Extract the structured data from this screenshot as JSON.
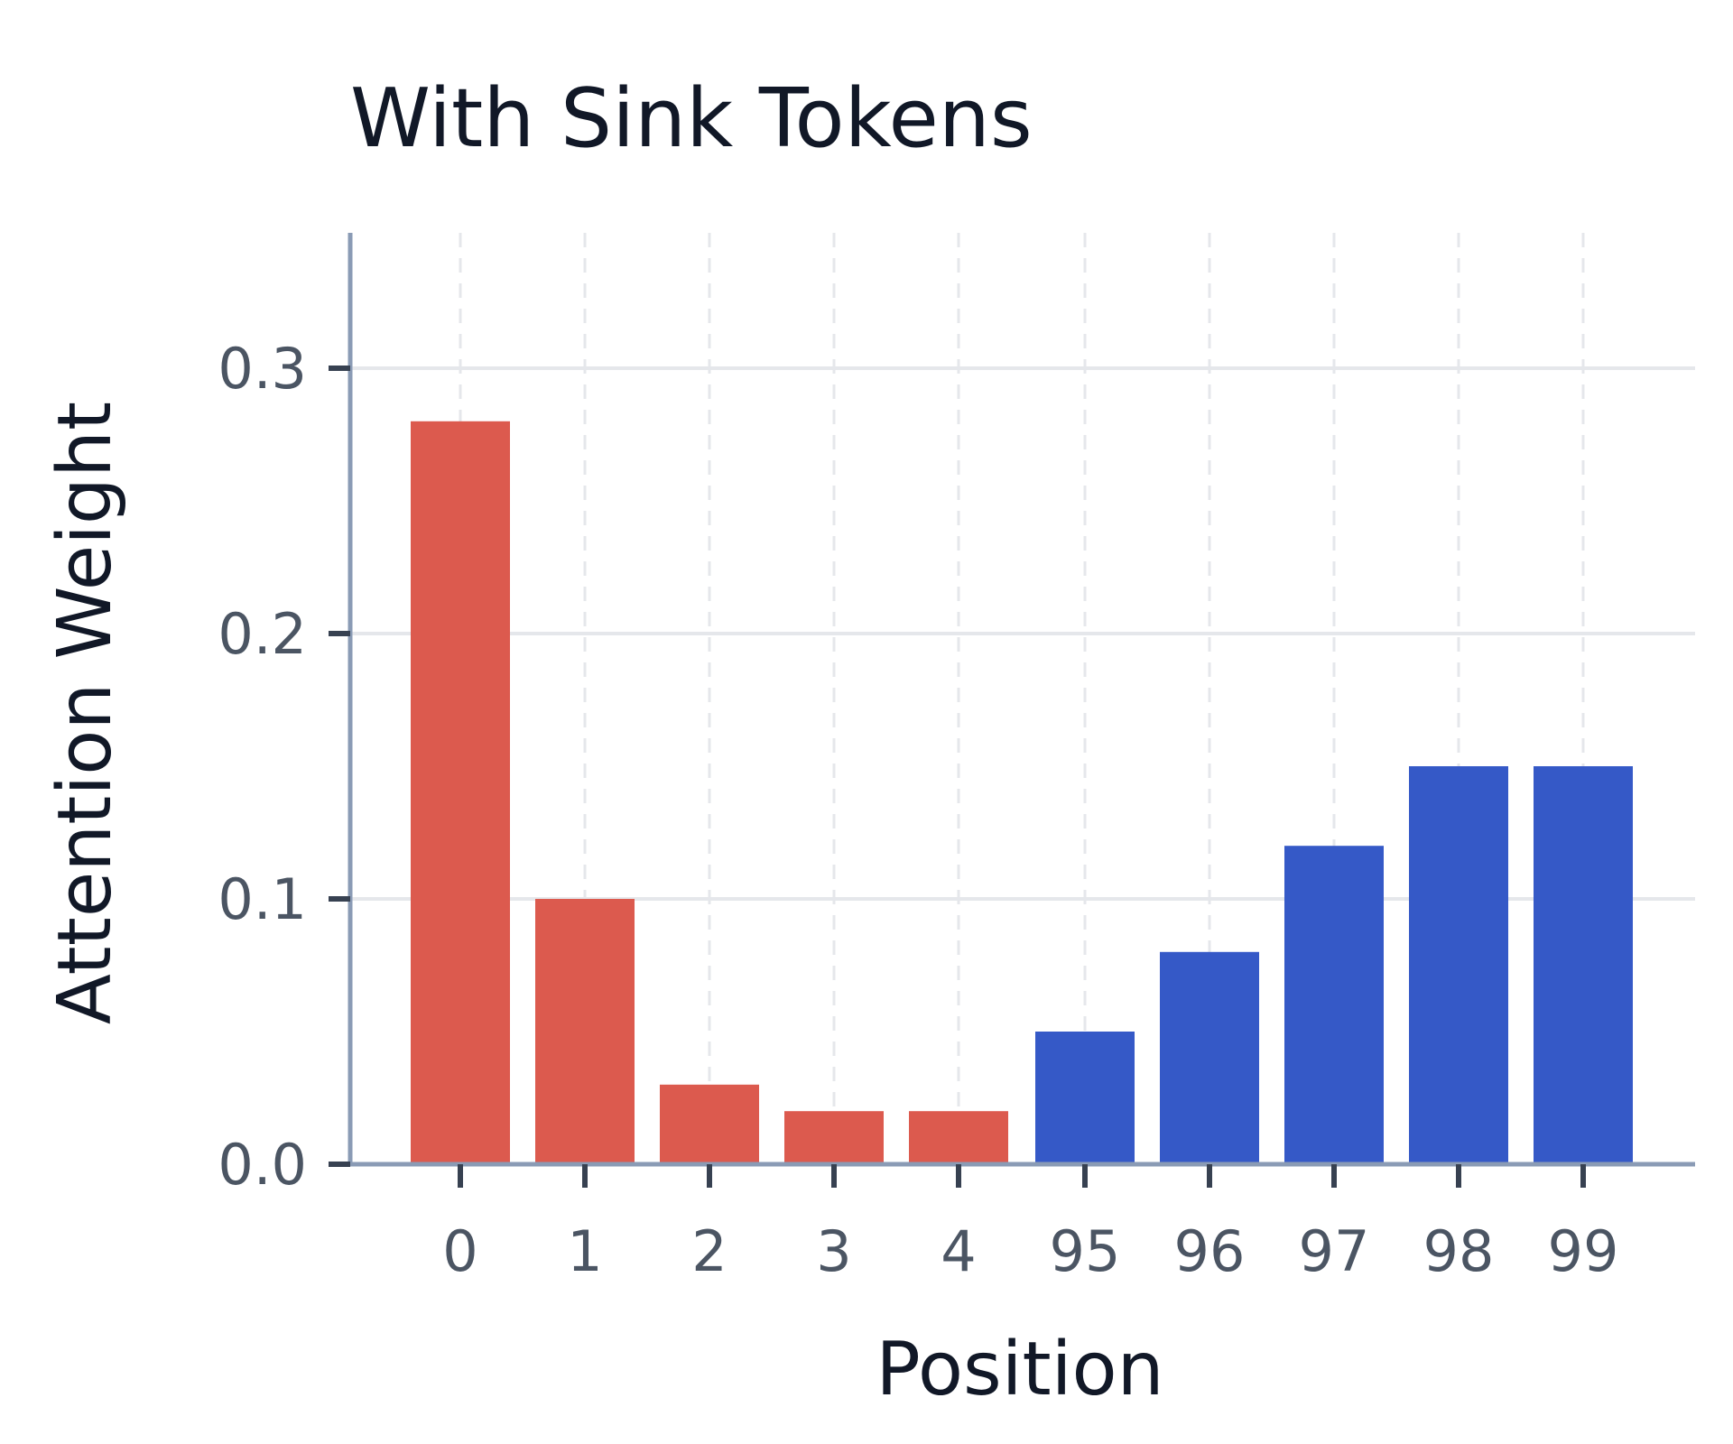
{
  "chart_data": {
    "type": "bar",
    "title": "With Sink Tokens",
    "xlabel": "Position",
    "ylabel": "Attention Weight",
    "categories": [
      "0",
      "1",
      "2",
      "3",
      "4",
      "95",
      "96",
      "97",
      "98",
      "99"
    ],
    "values": [
      0.28,
      0.1,
      0.03,
      0.02,
      0.02,
      0.05,
      0.08,
      0.12,
      0.15,
      0.15
    ],
    "bar_colors": [
      "#dc5a4e",
      "#dc5a4e",
      "#dc5a4e",
      "#dc5a4e",
      "#dc5a4e",
      "#3559c7",
      "#3559c7",
      "#3559c7",
      "#3559c7",
      "#3559c7"
    ],
    "ylim": [
      0,
      0.35
    ],
    "yticks": [
      0.0,
      0.1,
      0.2,
      0.3
    ],
    "ytick_labels": [
      "0.0",
      "0.1",
      "0.2",
      "0.3"
    ],
    "grid": true,
    "legend": "none"
  }
}
